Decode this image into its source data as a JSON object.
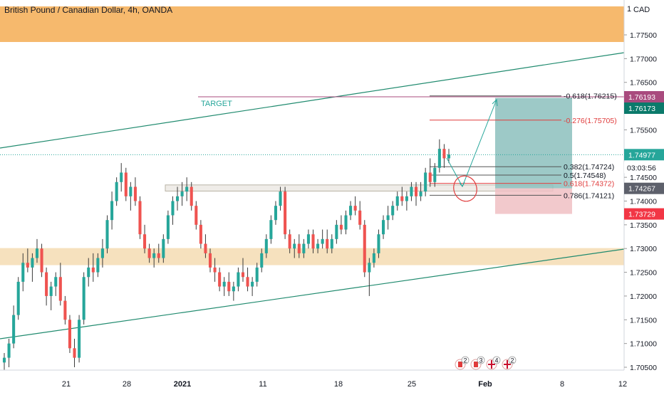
{
  "header": {
    "title": "British Pound / Canadian Dollar, 4h, OANDA",
    "currency": "CAD",
    "currency_mark": "1"
  },
  "chart_data": {
    "type": "candlestick",
    "price_axis": {
      "ticks": [
        1.705,
        1.71,
        1.715,
        1.72,
        1.725,
        1.73,
        1.735,
        1.74,
        1.745,
        1.75,
        1.755,
        1.76,
        1.765,
        1.77,
        1.775
      ],
      "range": [
        1.7025,
        1.78
      ]
    },
    "time_axis": {
      "ticks": [
        "21",
        "28",
        "2021",
        "11",
        "18",
        "25",
        "Feb",
        "8",
        "12"
      ],
      "bold": [
        "2021",
        "Feb"
      ]
    },
    "price_labels": [
      {
        "text": "1.76193",
        "color": "#a94b7e",
        "type": "target"
      },
      {
        "text": "1.76173",
        "color": "#0b7a6b",
        "type": "tp"
      },
      {
        "text": "1.74977",
        "color": "#26a69a",
        "type": "last"
      },
      {
        "text": "03:03:56",
        "color": "#26a69a",
        "type": "countdown"
      },
      {
        "text": "1.74267",
        "color": "#5d606b",
        "type": "entry"
      },
      {
        "text": "1.73729",
        "color": "#f23645",
        "type": "stop"
      }
    ],
    "zones": [
      {
        "name": "supply",
        "top": 1.781,
        "bottom": 1.7735,
        "color": "#f5b565"
      },
      {
        "name": "demand",
        "top": 1.7301,
        "bottom": 1.7265,
        "color": "#f3d7a8"
      },
      {
        "name": "resistance",
        "top": 1.7434,
        "bottom": 1.7421,
        "color": "#e9e6e0"
      }
    ],
    "fib_levels": [
      {
        "label": "-0.618(1.76215)",
        "price": 1.76215,
        "color": "#131722"
      },
      {
        "label": "-0.276(1.75705)",
        "price": 1.75705,
        "color": "#e03c3c"
      },
      {
        "label": "0.382(1.74724)",
        "price": 1.74724,
        "color": "#131722"
      },
      {
        "label": "0.5(1.74548)",
        "price": 1.74548,
        "color": "#131722"
      },
      {
        "label": "0.618(1.74372)",
        "price": 1.74372,
        "color": "#e03c3c"
      },
      {
        "label": "0.786(1.74121)",
        "price": 1.74121,
        "color": "#131722"
      }
    ],
    "annotations": [
      {
        "text": "TARGET",
        "color": "#26a69a"
      }
    ],
    "position": {
      "entry": 1.74267,
      "take_profit": 1.76173,
      "stop": 1.73729
    },
    "candles": [
      [
        1.706,
        1.708,
        1.703,
        1.707
      ],
      [
        1.707,
        1.711,
        1.705,
        1.71
      ],
      [
        1.71,
        1.718,
        1.709,
        1.716
      ],
      [
        1.716,
        1.724,
        1.715,
        1.723
      ],
      [
        1.723,
        1.729,
        1.721,
        1.727
      ],
      [
        1.727,
        1.73,
        1.725,
        1.726
      ],
      [
        1.726,
        1.729,
        1.723,
        1.728
      ],
      [
        1.728,
        1.732,
        1.727,
        1.73
      ],
      [
        1.73,
        1.731,
        1.724,
        1.725
      ],
      [
        1.725,
        1.726,
        1.718,
        1.72
      ],
      [
        1.72,
        1.723,
        1.717,
        1.722
      ],
      [
        1.722,
        1.725,
        1.72,
        1.724
      ],
      [
        1.724,
        1.727,
        1.718,
        1.719
      ],
      [
        1.719,
        1.72,
        1.714,
        1.715
      ],
      [
        1.715,
        1.716,
        1.708,
        1.709
      ],
      [
        1.709,
        1.711,
        1.705,
        1.707
      ],
      [
        1.707,
        1.716,
        1.706,
        1.715
      ],
      [
        1.715,
        1.725,
        1.714,
        1.724
      ],
      [
        1.724,
        1.728,
        1.722,
        1.726
      ],
      [
        1.726,
        1.729,
        1.723,
        1.725
      ],
      [
        1.725,
        1.729,
        1.724,
        1.728
      ],
      [
        1.728,
        1.732,
        1.726,
        1.73
      ],
      [
        1.73,
        1.737,
        1.729,
        1.736
      ],
      [
        1.736,
        1.742,
        1.734,
        1.74
      ],
      [
        1.74,
        1.745,
        1.739,
        1.744
      ],
      [
        1.744,
        1.748,
        1.742,
        1.746
      ],
      [
        1.746,
        1.747,
        1.74,
        1.741
      ],
      [
        1.741,
        1.744,
        1.738,
        1.743
      ],
      [
        1.743,
        1.745,
        1.739,
        1.74
      ],
      [
        1.74,
        1.741,
        1.732,
        1.733
      ],
      [
        1.733,
        1.735,
        1.729,
        1.73
      ],
      [
        1.73,
        1.731,
        1.727,
        1.728
      ],
      [
        1.728,
        1.73,
        1.726,
        1.729
      ],
      [
        1.729,
        1.731,
        1.727,
        1.728
      ],
      [
        1.728,
        1.733,
        1.727,
        1.732
      ],
      [
        1.732,
        1.738,
        1.731,
        1.737
      ],
      [
        1.737,
        1.741,
        1.735,
        1.74
      ],
      [
        1.74,
        1.743,
        1.738,
        1.741
      ],
      [
        1.741,
        1.744,
        1.739,
        1.742
      ],
      [
        1.742,
        1.745,
        1.74,
        1.743
      ],
      [
        1.743,
        1.744,
        1.738,
        1.739
      ],
      [
        1.739,
        1.74,
        1.734,
        1.735
      ],
      [
        1.735,
        1.736,
        1.73,
        1.731
      ],
      [
        1.731,
        1.733,
        1.728,
        1.729
      ],
      [
        1.729,
        1.73,
        1.725,
        1.726
      ],
      [
        1.726,
        1.728,
        1.723,
        1.725
      ],
      [
        1.725,
        1.726,
        1.721,
        1.722
      ],
      [
        1.722,
        1.724,
        1.72,
        1.723
      ],
      [
        1.723,
        1.725,
        1.72,
        1.721
      ],
      [
        1.721,
        1.723,
        1.719,
        1.722
      ],
      [
        1.722,
        1.726,
        1.721,
        1.725
      ],
      [
        1.725,
        1.728,
        1.723,
        1.724
      ],
      [
        1.724,
        1.726,
        1.721,
        1.722
      ],
      [
        1.722,
        1.724,
        1.72,
        1.723
      ],
      [
        1.723,
        1.727,
        1.722,
        1.726
      ],
      [
        1.726,
        1.73,
        1.725,
        1.729
      ],
      [
        1.729,
        1.733,
        1.728,
        1.732
      ],
      [
        1.732,
        1.737,
        1.731,
        1.736
      ],
      [
        1.736,
        1.74,
        1.735,
        1.739
      ],
      [
        1.739,
        1.743,
        1.738,
        1.742
      ],
      [
        1.742,
        1.743,
        1.732,
        1.733
      ],
      [
        1.733,
        1.734,
        1.729,
        1.73
      ],
      [
        1.73,
        1.732,
        1.728,
        1.731
      ],
      [
        1.731,
        1.733,
        1.728,
        1.729
      ],
      [
        1.729,
        1.732,
        1.728,
        1.731
      ],
      [
        1.731,
        1.734,
        1.73,
        1.733
      ],
      [
        1.733,
        1.734,
        1.729,
        1.73
      ],
      [
        1.73,
        1.732,
        1.729,
        1.731
      ],
      [
        1.731,
        1.734,
        1.73,
        1.732
      ],
      [
        1.732,
        1.734,
        1.729,
        1.73
      ],
      [
        1.73,
        1.733,
        1.729,
        1.732
      ],
      [
        1.732,
        1.736,
        1.731,
        1.735
      ],
      [
        1.735,
        1.737,
        1.733,
        1.734
      ],
      [
        1.734,
        1.738,
        1.733,
        1.737
      ],
      [
        1.737,
        1.74,
        1.736,
        1.739
      ],
      [
        1.739,
        1.741,
        1.737,
        1.738
      ],
      [
        1.738,
        1.74,
        1.734,
        1.735
      ],
      [
        1.735,
        1.736,
        1.724,
        1.725
      ],
      [
        1.725,
        1.728,
        1.72,
        1.727
      ],
      [
        1.727,
        1.73,
        1.726,
        1.729
      ],
      [
        1.729,
        1.734,
        1.728,
        1.733
      ],
      [
        1.733,
        1.737,
        1.732,
        1.736
      ],
      [
        1.736,
        1.739,
        1.734,
        1.737
      ],
      [
        1.737,
        1.74,
        1.736,
        1.739
      ],
      [
        1.739,
        1.742,
        1.738,
        1.741
      ],
      [
        1.741,
        1.743,
        1.739,
        1.74
      ],
      [
        1.74,
        1.742,
        1.738,
        1.741
      ],
      [
        1.741,
        1.744,
        1.74,
        1.743
      ],
      [
        1.743,
        1.744,
        1.739,
        1.741
      ],
      [
        1.741,
        1.744,
        1.74,
        1.742
      ],
      [
        1.742,
        1.747,
        1.741,
        1.746
      ],
      [
        1.746,
        1.749,
        1.743,
        1.744
      ],
      [
        1.744,
        1.748,
        1.743,
        1.747
      ],
      [
        1.747,
        1.753,
        1.746,
        1.751
      ],
      [
        1.751,
        1.752,
        1.747,
        1.749
      ],
      [
        1.749,
        1.751,
        1.748,
        1.7498
      ]
    ]
  },
  "events": [
    {
      "flag": "ca-flag",
      "count": "2"
    },
    {
      "flag": "ca-flag",
      "count": "3"
    },
    {
      "flag": "uk-flag",
      "count": "4"
    },
    {
      "flag": "uk-flag",
      "count": "2"
    }
  ]
}
